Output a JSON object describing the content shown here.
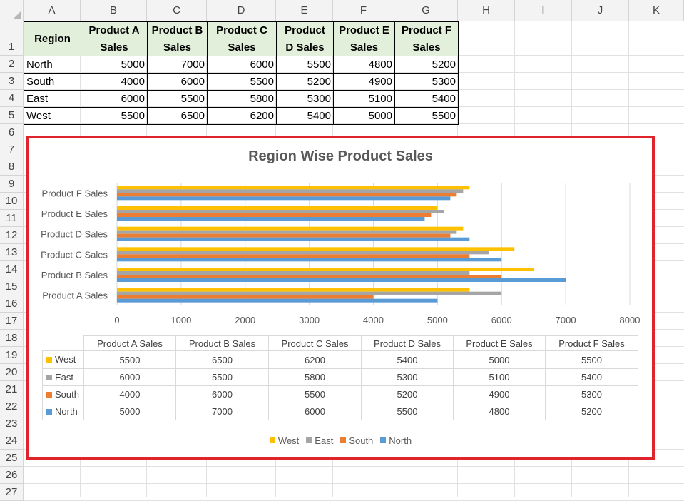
{
  "sheet": {
    "columns": [
      "A",
      "B",
      "C",
      "D",
      "E",
      "F",
      "G",
      "H",
      "I",
      "J",
      "K"
    ],
    "rows": [
      "1",
      "2",
      "3",
      "4",
      "5",
      "6",
      "7",
      "8",
      "9",
      "10",
      "11",
      "12",
      "13",
      "14",
      "15",
      "16",
      "17",
      "18",
      "19",
      "20",
      "21",
      "22",
      "23",
      "24",
      "25",
      "26",
      "27"
    ]
  },
  "table": {
    "headers": [
      "Region",
      "Product A Sales",
      "Product B Sales",
      "Product C Sales",
      "Product D Sales",
      "Product E Sales",
      "Product F Sales"
    ],
    "header_lines": [
      [
        "Region"
      ],
      [
        "Product A",
        "Sales"
      ],
      [
        "Product B",
        "Sales"
      ],
      [
        "Product C",
        "Sales"
      ],
      [
        "Product",
        "D Sales"
      ],
      [
        "Product E",
        "Sales"
      ],
      [
        "Product F",
        "Sales"
      ]
    ],
    "rows": [
      {
        "region": "North",
        "values": [
          "5000",
          "7000",
          "6000",
          "5500",
          "4800",
          "5200"
        ]
      },
      {
        "region": "South",
        "values": [
          "4000",
          "6000",
          "5500",
          "5200",
          "4900",
          "5300"
        ]
      },
      {
        "region": "East",
        "values": [
          "6000",
          "5500",
          "5800",
          "5300",
          "5100",
          "5400"
        ]
      },
      {
        "region": "West",
        "values": [
          "5500",
          "6500",
          "6200",
          "5400",
          "5000",
          "5500"
        ]
      }
    ]
  },
  "chart_data": {
    "type": "bar",
    "orientation": "horizontal",
    "title": "Region Wise Product Sales",
    "categories": [
      "Product A Sales",
      "Product B Sales",
      "Product C Sales",
      "Product D Sales",
      "Product E Sales",
      "Product F Sales"
    ],
    "series": [
      {
        "name": "North",
        "color": "#5b9bd5",
        "values": [
          5000,
          7000,
          6000,
          5500,
          4800,
          5200
        ]
      },
      {
        "name": "South",
        "color": "#ed7d31",
        "values": [
          4000,
          6000,
          5500,
          5200,
          4900,
          5300
        ]
      },
      {
        "name": "East",
        "color": "#a5a5a5",
        "values": [
          6000,
          5500,
          5800,
          5300,
          5100,
          5400
        ]
      },
      {
        "name": "West",
        "color": "#ffc000",
        "values": [
          5500,
          6500,
          6200,
          5400,
          5000,
          5500
        ]
      }
    ],
    "xlim": [
      0,
      8000
    ],
    "xticks": [
      "0",
      "1000",
      "2000",
      "3000",
      "4000",
      "5000",
      "6000",
      "7000",
      "8000"
    ],
    "grid": true,
    "data_table": true,
    "legend_position": "bottom",
    "legend_order": [
      "West",
      "East",
      "South",
      "North"
    ]
  },
  "ui": {
    "chart_border_color": "#e0242c",
    "header_fill": "#e2efda"
  }
}
